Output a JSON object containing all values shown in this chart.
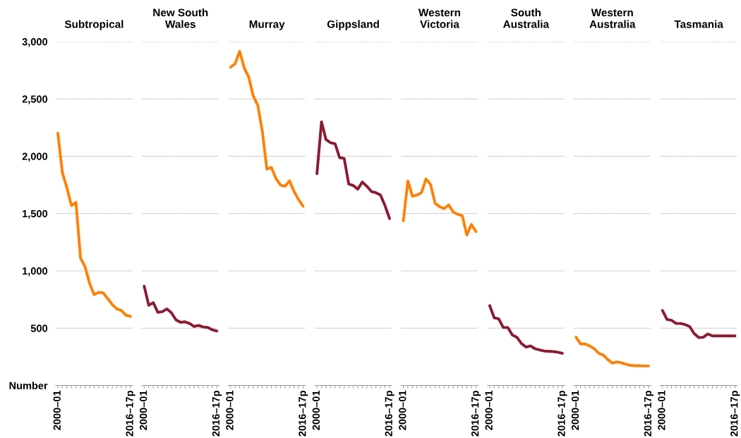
{
  "chart_data": [
    {
      "type": "line",
      "title": "Subtropical",
      "categories": [
        "2000–01",
        null,
        null,
        null,
        null,
        null,
        null,
        null,
        null,
        null,
        null,
        null,
        null,
        null,
        null,
        null,
        "2016–17p"
      ],
      "values": [
        2200,
        1857,
        1723,
        1569,
        1596,
        1111,
        1035,
        890,
        792,
        812,
        808,
        757,
        705,
        668,
        654,
        613,
        603
      ],
      "color": "#ff8000",
      "ylim": [
        0,
        3000
      ],
      "yticks": [
        {
          "value": 0,
          "label": "Number"
        },
        {
          "value": 500,
          "label": "500"
        },
        {
          "value": 1000,
          "label": "1,000"
        },
        {
          "value": 1500,
          "label": "1,500"
        },
        {
          "value": 2000,
          "label": "2,000"
        },
        {
          "value": 2500,
          "label": "2,500"
        },
        {
          "value": 3000,
          "label": "3,000"
        }
      ],
      "grid": "y"
    },
    {
      "type": "line",
      "title": "New South\nWales",
      "categories": [
        "2000–01",
        null,
        null,
        null,
        null,
        null,
        null,
        null,
        null,
        null,
        null,
        null,
        null,
        null,
        null,
        null,
        "2016–17p"
      ],
      "values": [
        866,
        699,
        722,
        638,
        644,
        668,
        634,
        572,
        551,
        555,
        541,
        514,
        524,
        510,
        506,
        486,
        475
      ],
      "color": "#8c1a32",
      "ylim": [
        0,
        3000
      ],
      "yticks": [
        0,
        500,
        1000,
        1500,
        2000,
        2500,
        3000
      ],
      "grid": "y",
      "tick_labels": "x"
    },
    {
      "type": "line",
      "title": "Murray",
      "categories": [
        "2000–01",
        null,
        null,
        null,
        null,
        null,
        null,
        null,
        null,
        null,
        null,
        null,
        null,
        null,
        null,
        null,
        "2016–17p"
      ],
      "values": [
        2777,
        2807,
        2916,
        2772,
        2690,
        2525,
        2443,
        2217,
        1888,
        1902,
        1806,
        1748,
        1738,
        1785,
        1692,
        1621,
        1563
      ],
      "color": "#ff8000",
      "ylim": [
        0,
        3000
      ],
      "yticks": [
        0,
        500,
        1000,
        1500,
        2000,
        2500,
        3000
      ],
      "grid": "y",
      "tick_labels": "x"
    },
    {
      "type": "line",
      "title": "Gippsland",
      "categories": [
        "2000–01",
        null,
        null,
        null,
        null,
        null,
        null,
        null,
        null,
        null,
        null,
        null,
        null,
        null,
        null,
        null,
        "2016–17p"
      ],
      "values": [
        1847,
        2300,
        2145,
        2118,
        2108,
        1987,
        1981,
        1758,
        1744,
        1713,
        1775,
        1738,
        1692,
        1682,
        1662,
        1569,
        1456
      ],
      "color": "#8c1a32",
      "ylim": [
        0,
        3000
      ],
      "yticks": [
        0,
        500,
        1000,
        1500,
        2000,
        2500,
        3000
      ],
      "grid": "y",
      "tick_labels": "x"
    },
    {
      "type": "line",
      "title": "Western\nVictoria",
      "categories": [
        "2000–01",
        null,
        null,
        null,
        null,
        null,
        null,
        null,
        null,
        null,
        null,
        null,
        null,
        null,
        null,
        null,
        "2016–17p"
      ],
      "values": [
        1436,
        1785,
        1652,
        1662,
        1682,
        1802,
        1754,
        1590,
        1559,
        1543,
        1575,
        1513,
        1493,
        1481,
        1312,
        1405,
        1343
      ],
      "color": "#ff8000",
      "ylim": [
        0,
        3000
      ],
      "yticks": [
        0,
        500,
        1000,
        1500,
        2000,
        2500,
        3000
      ],
      "grid": "y",
      "tick_labels": "x"
    },
    {
      "type": "line",
      "title": "South\nAustralia",
      "categories": [
        "2000–01",
        null,
        null,
        null,
        null,
        null,
        null,
        null,
        null,
        null,
        null,
        null,
        null,
        null,
        null,
        null,
        "2016–17p"
      ],
      "values": [
        697,
        590,
        580,
        505,
        505,
        440,
        420,
        365,
        335,
        345,
        320,
        310,
        300,
        298,
        295,
        290,
        280
      ],
      "color": "#8c1a32",
      "ylim": [
        0,
        3000
      ],
      "yticks": [
        0,
        500,
        1000,
        1500,
        2000,
        2500,
        3000
      ],
      "grid": "y",
      "tick_labels": "x"
    },
    {
      "type": "line",
      "title": "Western\nAustralia",
      "categories": [
        "2000–01",
        null,
        null,
        null,
        null,
        null,
        null,
        null,
        null,
        null,
        null,
        null,
        null,
        null,
        null,
        null,
        "2016–17p"
      ],
      "values": [
        421,
        362,
        362,
        345,
        321,
        280,
        265,
        225,
        195,
        205,
        198,
        185,
        175,
        172,
        172,
        170,
        170
      ],
      "color": "#ff8000",
      "ylim": [
        0,
        3000
      ],
      "yticks": [
        0,
        500,
        1000,
        1500,
        2000,
        2500,
        3000
      ],
      "grid": "y",
      "tick_labels": "x"
    },
    {
      "type": "line",
      "title": "Tasmania",
      "categories": [
        "2000–01",
        null,
        null,
        null,
        null,
        null,
        null,
        null,
        null,
        null,
        null,
        null,
        null,
        null,
        null,
        null,
        "2016–17p"
      ],
      "values": [
        654,
        576,
        568,
        541,
        541,
        531,
        514,
        452,
        418,
        421,
        449,
        432,
        432,
        432,
        432,
        432,
        432
      ],
      "color": "#8c1a32",
      "ylim": [
        0,
        3000
      ],
      "yticks": [
        0,
        500,
        1000,
        1500,
        2000,
        2500,
        3000
      ],
      "grid": "y",
      "tick_labels": "x"
    }
  ]
}
